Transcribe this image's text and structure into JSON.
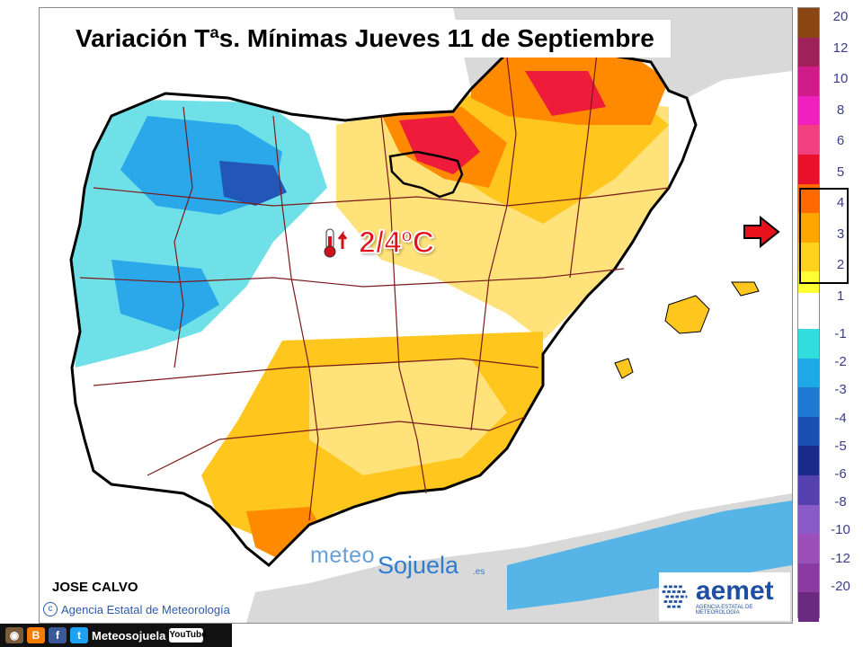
{
  "map": {
    "title": "Variación Tªs. Mínimas Jueves 11 de Septiembre",
    "highlight_value": "2/4ºC",
    "author": "JOSE CALVO",
    "agency": "Agencia Estatal de Meteorología",
    "watermark_left": "meteo",
    "watermark_right": "Sojuela",
    "watermark_tld": ".es",
    "aemet_name": "aemet",
    "aemet_sub": "AGENCIA ESTATAL DE METEOROLOGÍA",
    "social_handle": "Meteosojuela",
    "youtube": "YouTube"
  },
  "legend": {
    "highlighted_range": [
      "2",
      "4"
    ],
    "items": [
      {
        "label": "20",
        "color": "#8b4513"
      },
      {
        "label": "12",
        "color": "#a0205a"
      },
      {
        "label": "10",
        "color": "#d01c8b"
      },
      {
        "label": "8",
        "color": "#f020c0"
      },
      {
        "label": "6",
        "color": "#f04080"
      },
      {
        "label": "5",
        "color": "#e8102a"
      },
      {
        "label": "4",
        "color": "#ff6a00"
      },
      {
        "label": "3",
        "color": "#ffa500"
      },
      {
        "label": "2",
        "color": "#ffd21e"
      },
      {
        "label": "1",
        "color": "#ffff33"
      },
      {
        "label": "-1",
        "color": "#33dddd"
      },
      {
        "label": "-2",
        "color": "#1fa8e8"
      },
      {
        "label": "-3",
        "color": "#1c7ad4"
      },
      {
        "label": "-4",
        "color": "#1a4fb4"
      },
      {
        "label": "-5",
        "color": "#1a2a8a"
      },
      {
        "label": "-6",
        "color": "#5540b0"
      },
      {
        "label": "-8",
        "color": "#8a5ac8"
      },
      {
        "label": "-10",
        "color": "#9a50b8"
      },
      {
        "label": "-12",
        "color": "#8a3aa0"
      },
      {
        "label": "-20",
        "color": "#6a2a80"
      }
    ]
  },
  "colors": {
    "sea": "#ffffff",
    "land_outside": "#d9d9d9",
    "warm_light": "#ffe27a",
    "warm": "#ffc61e",
    "hot": "#ff8a00",
    "very_hot": "#ee1c3a",
    "cold_light": "#6fe0e8",
    "cold": "#2aa8ea",
    "cold_dark": "#2257b8",
    "border": "#7a1a1a"
  },
  "icons": {
    "thermometer": "thermometer-up-icon",
    "arrow": "red-arrow-icon"
  }
}
